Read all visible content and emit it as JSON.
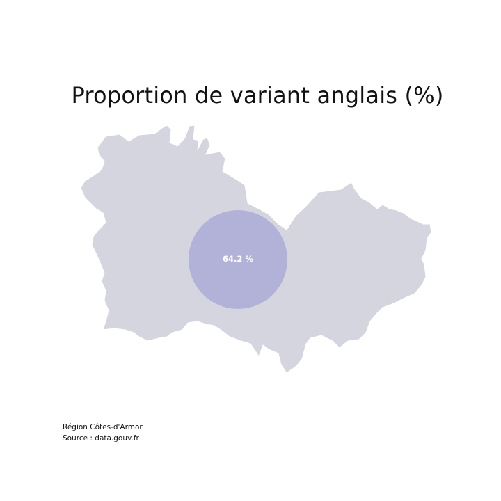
{
  "title": "Proportion de variant anglais (%)",
  "map": {
    "region_fill": "#d5d5df",
    "bubble_fill": "#a9a9d7",
    "bubble_opacity": 0.8,
    "bubble_value": 64.2,
    "bubble_label": "64.2 %"
  },
  "footer": {
    "region_line": "Région Côtes-d'Armor",
    "source_line": "Source : data.gouv.fr"
  }
}
